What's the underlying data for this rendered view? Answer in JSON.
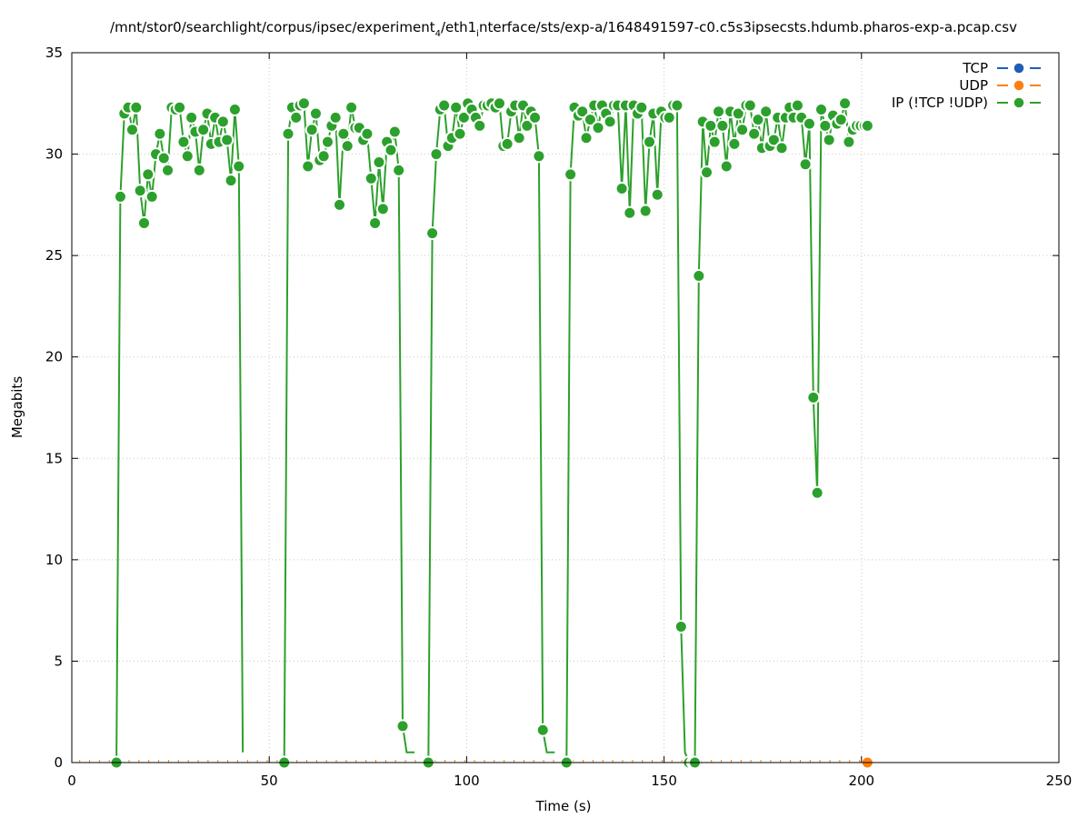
{
  "chart_data": {
    "type": "line",
    "title_prefix": "/mnt/stor0/searchlight/corpus/ipsec/experiment",
    "title_sub1": "4",
    "title_mid": "/eth1",
    "title_sub2": "i",
    "title_suffix": "nterface/sts/exp-a/1648491597-c0.c5s3ipsecsts.hdumb.pharos-exp-a.pcap.csv",
    "xlabel": "Time (s)",
    "ylabel": "Megabits",
    "xlim": [
      0,
      250
    ],
    "ylim": [
      0,
      35
    ],
    "xticks": [
      0,
      50,
      100,
      150,
      200,
      250
    ],
    "yticks": [
      0,
      5,
      10,
      15,
      20,
      25,
      30,
      35
    ],
    "grid": true,
    "legend_position": "top-right",
    "series": [
      {
        "name": "TCP",
        "color": "#1f5fb4",
        "x": [],
        "y": []
      },
      {
        "name": "UDP",
        "color": "#ff7f0e",
        "x": [
          201.5
        ],
        "y": [
          0
        ]
      },
      {
        "name": "IP (!TCP  !UDP)",
        "color": "#2ca02c",
        "segments": [
          {
            "x": [
              11.3,
              12.3,
              13.3,
              14.3,
              15.3,
              16.3,
              17.3,
              18.3,
              19.3,
              20.3,
              21.3,
              22.3,
              23.3,
              24.3,
              25.3,
              26.3,
              27.3,
              28.3,
              29.3,
              30.3,
              31.3,
              32.3,
              33.3,
              34.3,
              35.3,
              36.3,
              37.3,
              38.3,
              39.3,
              40.3,
              41.3,
              42.3,
              43.3
            ],
            "y": [
              0,
              27.9,
              32.0,
              32.3,
              31.2,
              32.3,
              28.2,
              26.6,
              29.0,
              27.9,
              30.0,
              31.0,
              29.8,
              29.2,
              32.3,
              32.2,
              32.3,
              30.6,
              29.9,
              31.8,
              31.1,
              29.2,
              31.2,
              32.0,
              30.5,
              31.8,
              30.6,
              31.6,
              30.7,
              28.7,
              32.2,
              29.4,
              0.5
            ]
          },
          {
            "x": [
              53.8,
              54.8,
              55.8,
              56.8,
              57.8,
              58.8,
              59.8,
              60.8,
              61.8,
              62.8,
              63.8,
              64.8,
              65.8,
              66.8,
              67.8,
              68.8,
              69.8,
              70.8,
              71.8,
              72.8,
              73.8,
              74.8,
              75.8,
              76.8,
              77.8,
              78.8,
              79.8,
              80.8,
              81.8,
              82.8,
              83.8,
              84.8,
              85.8,
              86.8
            ],
            "y": [
              0,
              31.0,
              32.3,
              31.8,
              32.4,
              32.5,
              29.4,
              31.2,
              32.0,
              29.7,
              29.9,
              30.6,
              31.4,
              31.8,
              27.5,
              31.0,
              30.4,
              32.3,
              31.3,
              31.3,
              30.7,
              31.0,
              28.8,
              26.6,
              29.6,
              27.3,
              30.6,
              30.2,
              31.1,
              29.2,
              1.8,
              0.5,
              0.5,
              0.5
            ]
          },
          {
            "x": [
              90.3,
              91.3,
              92.3,
              93.3,
              94.3,
              95.3,
              96.3,
              97.3,
              98.3,
              99.3,
              100.3,
              101.3,
              102.3,
              103.3,
              104.3,
              105.3,
              106.3,
              107.3,
              108.3,
              109.3,
              110.3,
              111.3,
              112.3,
              113.3,
              114.3,
              115.3,
              116.3,
              117.3,
              118.3,
              119.3,
              120.3,
              121.3,
              122.3
            ],
            "y": [
              0,
              26.1,
              30.0,
              32.2,
              32.4,
              30.4,
              30.8,
              32.3,
              31.0,
              31.8,
              32.5,
              32.2,
              31.8,
              31.4,
              32.4,
              32.4,
              32.5,
              32.3,
              32.5,
              30.4,
              30.5,
              32.1,
              32.4,
              30.8,
              32.4,
              31.4,
              32.1,
              31.8,
              29.9,
              1.6,
              0.5,
              0.5,
              0.5
            ]
          },
          {
            "x": [
              125.3,
              126.3,
              127.3,
              128.3,
              129.3,
              130.3,
              131.3,
              132.3,
              133.3,
              134.3,
              135.3,
              136.3,
              137.3,
              138.3,
              139.3,
              140.3,
              141.3,
              142.3,
              143.3,
              144.3,
              145.3,
              146.3,
              147.3,
              148.3,
              149.3,
              150.3,
              151.3,
              152.3,
              153.3,
              154.3,
              155.3,
              156.3,
              157.3,
              158.3
            ],
            "y": [
              0,
              29.0,
              32.3,
              31.9,
              32.1,
              30.8,
              31.7,
              32.4,
              31.3,
              32.4,
              32.0,
              31.6,
              32.4,
              32.4,
              28.3,
              32.4,
              27.1,
              32.4,
              32.0,
              32.3,
              27.2,
              30.6,
              32.0,
              28.0,
              32.1,
              31.8,
              31.8,
              32.4,
              32.4,
              6.7,
              0.5,
              0,
              0,
              0
            ]
          },
          {
            "x": [
              157.8,
              158.8,
              159.8,
              160.8,
              161.8,
              162.8,
              163.8,
              164.8,
              165.8,
              166.8,
              167.8,
              168.8,
              169.8,
              170.8,
              171.8,
              172.8,
              173.8,
              174.8,
              175.8,
              176.8,
              177.8,
              178.8,
              179.8,
              180.8,
              181.8,
              182.8,
              183.8,
              184.8,
              185.8,
              186.8,
              187.8,
              188.8,
              189.8,
              190.8,
              191.8,
              192.8,
              193.8,
              194.8,
              195.8,
              196.8,
              197.8,
              198.8,
              199.8,
              200.8,
              201.5
            ],
            "y": [
              0,
              24.0,
              31.6,
              29.1,
              31.4,
              30.6,
              32.1,
              31.4,
              29.4,
              32.1,
              30.5,
              32.0,
              31.2,
              32.4,
              32.4,
              31.0,
              31.7,
              30.3,
              32.1,
              30.4,
              30.7,
              31.8,
              30.3,
              31.8,
              32.3,
              31.8,
              32.4,
              31.8,
              29.5,
              31.5,
              18.0,
              13.3,
              32.2,
              31.4,
              30.7,
              31.9,
              31.5,
              31.7,
              32.5,
              30.6,
              31.2,
              31.4,
              31.4,
              31.4,
              31.4
            ]
          }
        ]
      }
    ]
  }
}
